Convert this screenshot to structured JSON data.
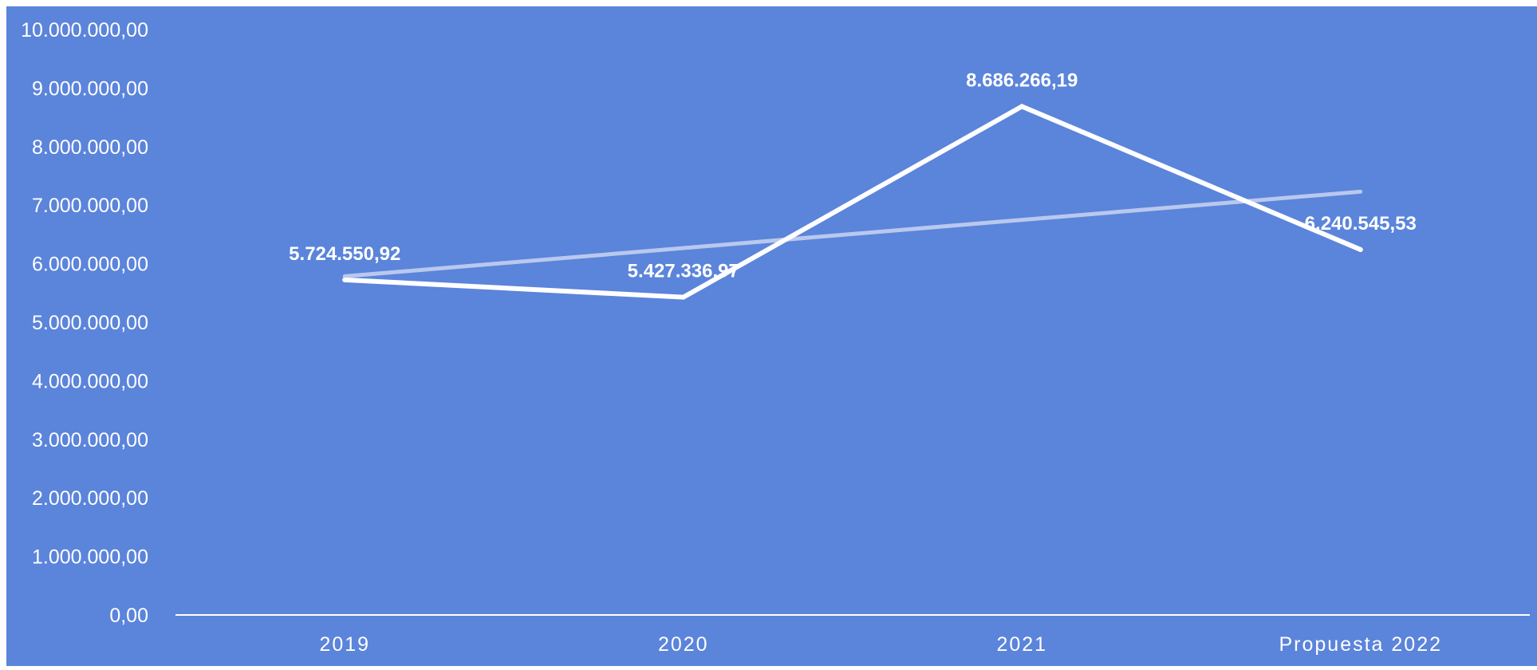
{
  "colors": {
    "background": "#5b84db",
    "line": "#ffffff",
    "trendline": "#b9c8ee",
    "axis": "#ffffff",
    "text": "#ffffff"
  },
  "chart_data": {
    "type": "line",
    "title": "",
    "xlabel": "",
    "ylabel": "",
    "categories": [
      "2019",
      "2020",
      "2021",
      "Propuesta 2022"
    ],
    "series": [
      {
        "values": [
          5724550.92,
          5427336.97,
          8686266.19,
          6240545.53
        ],
        "data_labels": [
          "5.724.550,92",
          "5.427.336,97",
          "8.686.266,19",
          "6.240.545,53"
        ]
      }
    ],
    "trendline": {
      "type": "linear",
      "values": [
        5785000,
        7230000
      ]
    },
    "ylim": [
      0,
      10000000
    ],
    "y_ticks": [
      0,
      1000000,
      2000000,
      3000000,
      4000000,
      5000000,
      6000000,
      7000000,
      8000000,
      9000000,
      10000000
    ],
    "y_tick_labels": [
      "0,00",
      "1.000.000,00",
      "2.000.000,00",
      "3.000.000,00",
      "4.000.000,00",
      "5.000.000,00",
      "6.000.000,00",
      "7.000.000,00",
      "8.000.000,00",
      "9.000.000,00",
      "10.000.000,00"
    ],
    "grid": false,
    "legend": "none"
  }
}
